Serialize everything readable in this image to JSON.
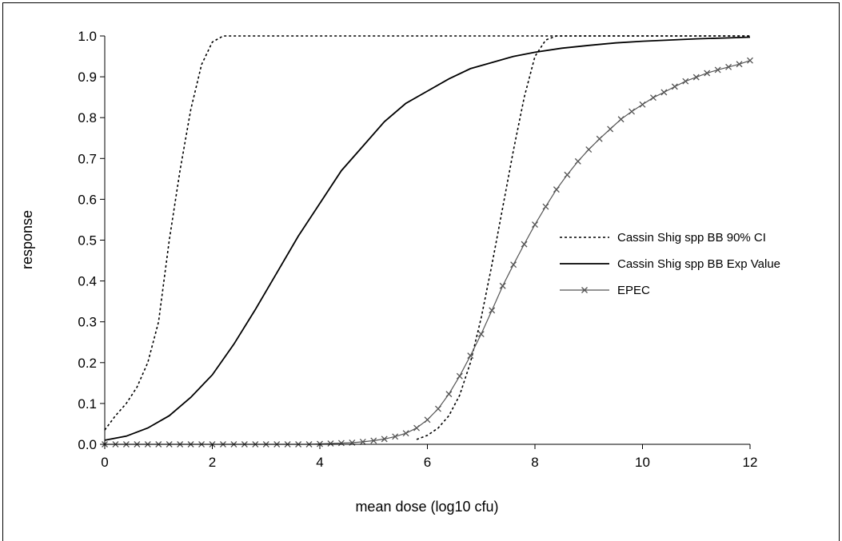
{
  "chart_data": {
    "type": "line",
    "title": "",
    "xlabel": "mean dose (log10 cfu)",
    "ylabel": "response",
    "xlim": [
      0,
      12
    ],
    "ylim": [
      0,
      1
    ],
    "x_ticks": [
      0,
      2,
      4,
      6,
      8,
      10,
      12
    ],
    "y_ticks": [
      0,
      0.1,
      0.2,
      0.3,
      0.4,
      0.5,
      0.6,
      0.7,
      0.8,
      0.9,
      1.0
    ],
    "x_tick_labels": [
      "0",
      "2",
      "4",
      "6",
      "8",
      "10",
      "12"
    ],
    "y_tick_labels": [
      "0.0",
      "0.1",
      "0.2",
      "0.3",
      "0.4",
      "0.5",
      "0.6",
      "0.7",
      "0.8",
      "0.9",
      "1.0"
    ],
    "grid": false,
    "legend_position": "right",
    "series": [
      {
        "name": "Cassin Shig spp BB 90% CI",
        "style": "dotted",
        "color": "#000000",
        "segments": [
          {
            "x": [
              0,
              0.2,
              0.4,
              0.6,
              0.8,
              1.0,
              1.2,
              1.4,
              1.6,
              1.8,
              2.0,
              2.2,
              12
            ],
            "y": [
              0.035,
              0.07,
              0.1,
              0.14,
              0.2,
              0.3,
              0.5,
              0.67,
              0.82,
              0.93,
              0.985,
              1.0,
              1.0
            ]
          },
          {
            "x": [
              5.8,
              6.0,
              6.2,
              6.4,
              6.6,
              6.8,
              7.0,
              7.2,
              7.4,
              7.6,
              7.8,
              8.0,
              8.2,
              8.4,
              12
            ],
            "y": [
              0.012,
              0.022,
              0.04,
              0.07,
              0.12,
              0.2,
              0.31,
              0.44,
              0.58,
              0.72,
              0.85,
              0.95,
              0.99,
              1.0,
              1.0
            ]
          }
        ]
      },
      {
        "name": "Cassin Shig spp BB Exp Value",
        "style": "solid",
        "color": "#000000",
        "x": [
          0,
          0.4,
          0.8,
          1.2,
          1.6,
          2.0,
          2.4,
          2.8,
          3.2,
          3.6,
          4.0,
          4.4,
          4.8,
          5.2,
          5.6,
          6.0,
          6.4,
          6.8,
          7.2,
          7.6,
          8.0,
          8.5,
          9.0,
          9.5,
          10.0,
          10.5,
          11.0,
          11.5,
          12.0
        ],
        "y": [
          0.01,
          0.02,
          0.04,
          0.07,
          0.115,
          0.17,
          0.245,
          0.33,
          0.42,
          0.51,
          0.59,
          0.67,
          0.73,
          0.79,
          0.835,
          0.865,
          0.895,
          0.92,
          0.935,
          0.95,
          0.96,
          0.97,
          0.977,
          0.983,
          0.987,
          0.99,
          0.993,
          0.995,
          0.997
        ]
      },
      {
        "name": "EPEC",
        "style": "solid-with-x-markers",
        "color": "#555555",
        "x": [
          0,
          0.2,
          0.4,
          0.6,
          0.8,
          1.0,
          1.2,
          1.4,
          1.6,
          1.8,
          2.0,
          2.2,
          2.4,
          2.6,
          2.8,
          3.0,
          3.2,
          3.4,
          3.6,
          3.8,
          4.0,
          4.2,
          4.4,
          4.6,
          4.8,
          5.0,
          5.2,
          5.4,
          5.6,
          5.8,
          6.0,
          6.2,
          6.4,
          6.6,
          6.8,
          7.0,
          7.2,
          7.4,
          7.6,
          7.8,
          8.0,
          8.2,
          8.4,
          8.6,
          8.8,
          9.0,
          9.2,
          9.4,
          9.6,
          9.8,
          10.0,
          10.2,
          10.4,
          10.6,
          10.8,
          11.0,
          11.2,
          11.4,
          11.6,
          11.8,
          12.0
        ],
        "y": [
          0,
          0,
          0,
          0,
          0,
          0,
          0,
          0,
          0,
          0,
          0,
          0,
          0,
          0,
          0,
          0,
          0,
          0,
          0,
          0,
          0.001,
          0.002,
          0.003,
          0.004,
          0.006,
          0.009,
          0.013,
          0.019,
          0.027,
          0.04,
          0.06,
          0.087,
          0.123,
          0.167,
          0.217,
          0.27,
          0.328,
          0.388,
          0.44,
          0.49,
          0.538,
          0.582,
          0.624,
          0.66,
          0.693,
          0.722,
          0.748,
          0.772,
          0.796,
          0.815,
          0.832,
          0.849,
          0.862,
          0.876,
          0.889,
          0.899,
          0.909,
          0.917,
          0.924,
          0.931,
          0.94
        ]
      }
    ]
  }
}
